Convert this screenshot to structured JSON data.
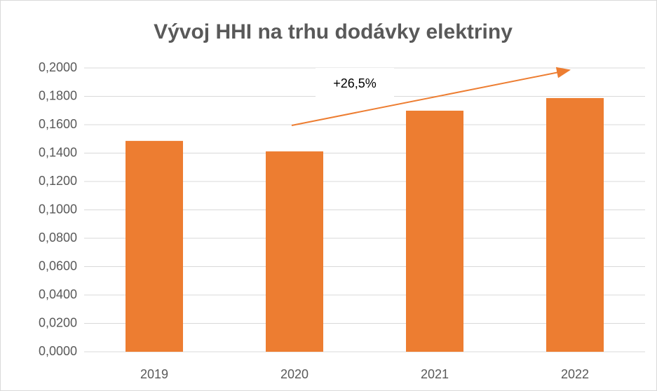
{
  "chart_data": {
    "type": "bar",
    "title": "Vývoj HHI na trhu dodávky elektriny",
    "categories": [
      "2019",
      "2020",
      "2021",
      "2022"
    ],
    "values": [
      0.1486,
      0.1412,
      0.1699,
      0.1788
    ],
    "color": "#ed7d31",
    "ylim": [
      0,
      0.2
    ],
    "yticks": [
      {
        "value": 0,
        "label": "0,0000"
      },
      {
        "value": 0.02,
        "label": "0,0200"
      },
      {
        "value": 0.04,
        "label": "0,0400"
      },
      {
        "value": 0.06,
        "label": "0,0600"
      },
      {
        "value": 0.08,
        "label": "0,0800"
      },
      {
        "value": 0.1,
        "label": "0,1000"
      },
      {
        "value": 0.12,
        "label": "0,1200"
      },
      {
        "value": 0.14,
        "label": "0,1400"
      },
      {
        "value": 0.16,
        "label": "0,1600"
      },
      {
        "value": 0.18,
        "label": "0,1800"
      },
      {
        "value": 0.2,
        "label": "0,2000"
      }
    ],
    "grid": true,
    "annotation": "+26,5%"
  }
}
